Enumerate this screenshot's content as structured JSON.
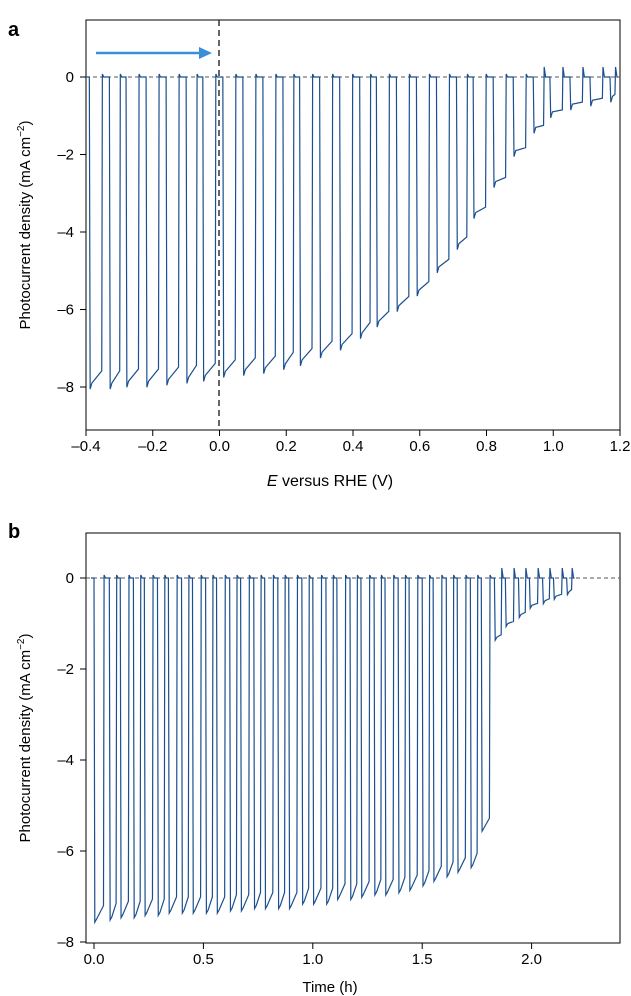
{
  "color": "#1b4f8f",
  "arrow_color": "#3a8fd8",
  "chart_data": [
    {
      "panel_label": "a",
      "type": "line",
      "title": "",
      "xlabel_italic": "E",
      "xlabel_rest": " versus RHE (V)",
      "ylabel": "Photocurrent density (mA cm",
      "ylabel_sup": "−2",
      "ylabel_close": ")",
      "xlim": [
        -0.4,
        1.2
      ],
      "ylim": [
        -9,
        1.5
      ],
      "xticks": [
        -0.4,
        -0.2,
        0.0,
        0.2,
        0.4,
        0.6,
        0.8,
        1.0,
        1.2
      ],
      "xtick_labels": [
        "–0.4",
        "–0.2",
        "0.0",
        "0.2",
        "0.4",
        "0.6",
        "0.8",
        "1.0",
        "1.2"
      ],
      "yticks": [
        0,
        -2,
        -4,
        -6,
        -8
      ],
      "ytick_labels": [
        "0",
        "–2",
        "–4",
        "–6",
        "–8"
      ],
      "description_marks": {
        "dashed_vertical_at_x": 0.0,
        "arrow_direction": "right"
      },
      "series": [
        {
          "x": [
            -0.39,
            -0.33,
            -0.28,
            -0.22,
            -0.16,
            -0.1,
            -0.05,
            0.01,
            0.07,
            0.13,
            0.19,
            0.24,
            0.3,
            0.36,
            0.42,
            0.47,
            0.53,
            0.59,
            0.65,
            0.71,
            0.76,
            0.82,
            0.88,
            0.94,
            0.99,
            1.05,
            1.11,
            1.17
          ],
          "y": [
            -7.9,
            -7.9,
            -7.85,
            -7.85,
            -7.8,
            -7.75,
            -7.7,
            -7.6,
            -7.55,
            -7.5,
            -7.4,
            -7.3,
            -7.1,
            -6.9,
            -6.6,
            -6.3,
            -5.9,
            -5.5,
            -4.9,
            -4.3,
            -3.5,
            -2.7,
            -1.9,
            -1.3,
            -0.9,
            -0.7,
            -0.6,
            -0.5
          ]
        }
      ]
    },
    {
      "panel_label": "b",
      "type": "line",
      "title": "",
      "xlabel": "Time (h)",
      "ylabel": "Photocurrent density (mA cm",
      "ylabel_sup": "−2",
      "ylabel_close": ")",
      "xlim": [
        -0.03,
        2.2
      ],
      "ylim": [
        -8,
        1
      ],
      "xticks": [
        0.0,
        0.5,
        1.0,
        1.5,
        2.0
      ],
      "xtick_labels": [
        "0.0",
        "0.5",
        "1.0",
        "1.5",
        "2.0"
      ],
      "yticks": [
        0,
        -2,
        -4,
        -6,
        -8
      ],
      "ytick_labels": [
        "0",
        "–2",
        "–4",
        "–6",
        "–8"
      ],
      "series": [
        {
          "x": [
            0.0,
            0.07,
            0.12,
            0.18,
            0.23,
            0.29,
            0.34,
            0.4,
            0.45,
            0.51,
            0.56,
            0.62,
            0.67,
            0.73,
            0.78,
            0.84,
            0.89,
            0.95,
            1.0,
            1.06,
            1.11,
            1.17,
            1.22,
            1.28,
            1.33,
            1.39,
            1.44,
            1.5,
            1.55,
            1.61,
            1.66,
            1.72,
            1.77,
            1.83,
            1.88,
            1.94,
            1.99,
            2.05,
            2.1,
            2.16
          ],
          "y": [
            -7.5,
            -7.45,
            -7.4,
            -7.4,
            -7.35,
            -7.35,
            -7.3,
            -7.3,
            -7.3,
            -7.3,
            -7.3,
            -7.25,
            -7.25,
            -7.2,
            -7.2,
            -7.2,
            -7.2,
            -7.1,
            -7.1,
            -7.1,
            -7.0,
            -7.0,
            -6.95,
            -6.9,
            -6.9,
            -6.85,
            -6.8,
            -6.7,
            -6.6,
            -6.5,
            -6.4,
            -6.3,
            -5.5,
            -1.3,
            -1.0,
            -0.8,
            -0.6,
            -0.5,
            -0.4,
            -0.3
          ]
        }
      ]
    }
  ]
}
